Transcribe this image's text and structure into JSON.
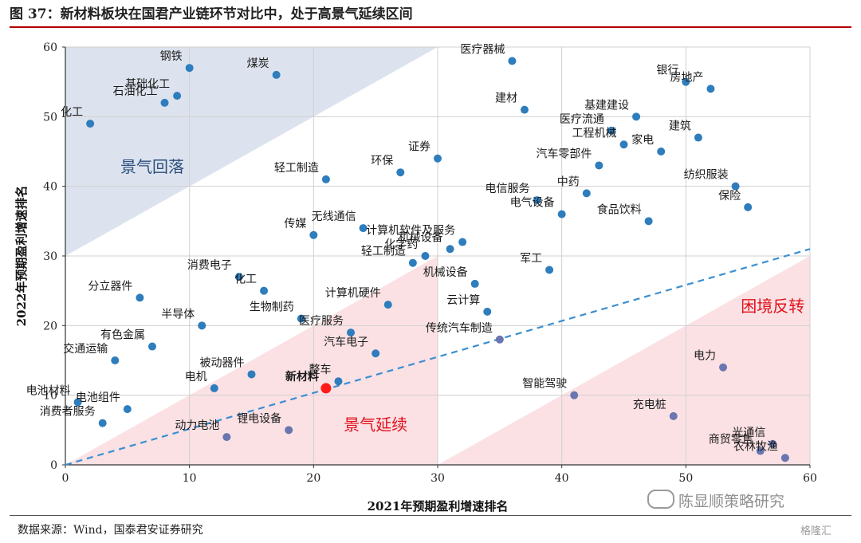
{
  "header": {
    "title": "图 37：新材料板块在国君产业链环节对比中，处于高景气延续区间"
  },
  "footer": {
    "source": "数据来源：Wind，国泰君安证券研究",
    "watermark": "陈显顺策略研究",
    "logo": "格隆汇"
  },
  "colors": {
    "point": "#2e7dbd",
    "point_lower": "#6a76b0",
    "highlight": "#ff1a1a",
    "region_decline": "#dde3ee",
    "region_continue": "#fbe1e4",
    "trend": "#3a8fd1",
    "label_decline": "#2b4f7d",
    "label_red": "#e0101a"
  },
  "chart_data": {
    "type": "scatter",
    "xlabel": "2021年预期盈利增速排名",
    "ylabel": "2022年预期盈利增速排名",
    "xlim": [
      0,
      60
    ],
    "ylim": [
      0,
      60
    ],
    "xticks": [
      0,
      10,
      20,
      30,
      40,
      50,
      60
    ],
    "yticks": [
      0,
      10,
      20,
      30,
      40,
      50,
      60
    ],
    "grid": true,
    "regions": [
      {
        "label": "景气回落",
        "label_x": 7,
        "label_y": 42,
        "color": "decline"
      },
      {
        "label": "景气延续",
        "label_x": 25,
        "label_y": 5,
        "color": "continue"
      },
      {
        "label": "困境反转",
        "label_x": 57,
        "label_y": 22,
        "color": "reversal"
      }
    ],
    "trendline": {
      "x": [
        0,
        60
      ],
      "y": [
        0,
        31
      ]
    },
    "points": [
      {
        "name": "化工",
        "x": 2,
        "y": 49
      },
      {
        "name": "石油化工",
        "x": 8,
        "y": 52
      },
      {
        "name": "基础化工",
        "x": 9,
        "y": 53
      },
      {
        "name": "钢铁",
        "x": 10,
        "y": 57
      },
      {
        "name": "煤炭",
        "x": 17,
        "y": 56
      },
      {
        "name": "医疗器械",
        "x": 36,
        "y": 58
      },
      {
        "name": "建材",
        "x": 37,
        "y": 51
      },
      {
        "name": "银行",
        "x": 50,
        "y": 55
      },
      {
        "name": "房地产",
        "x": 52,
        "y": 54
      },
      {
        "name": "基建建设",
        "x": 46,
        "y": 50
      },
      {
        "name": "医疗流通",
        "x": 44,
        "y": 48
      },
      {
        "name": "工程机械",
        "x": 45,
        "y": 46
      },
      {
        "name": "家电",
        "x": 48,
        "y": 45
      },
      {
        "name": "建筑",
        "x": 51,
        "y": 47
      },
      {
        "name": "汽车零部件",
        "x": 43,
        "y": 43
      },
      {
        "name": "中药",
        "x": 42,
        "y": 39
      },
      {
        "name": "纺织服装",
        "x": 54,
        "y": 40
      },
      {
        "name": "保险",
        "x": 55,
        "y": 37
      },
      {
        "name": "证券",
        "x": 30,
        "y": 44
      },
      {
        "name": "环保",
        "x": 27,
        "y": 42
      },
      {
        "name": "轻工制造",
        "x": 21,
        "y": 41
      },
      {
        "name": "电信服务",
        "x": 38,
        "y": 38
      },
      {
        "name": "电气设备",
        "x": 40,
        "y": 36
      },
      {
        "name": "食品饮料",
        "x": 47,
        "y": 35
      },
      {
        "name": "计算机软件及服务",
        "x": 32,
        "y": 32
      },
      {
        "name": "机械设备",
        "x": 31,
        "y": 31
      },
      {
        "name": "化学药",
        "x": 29,
        "y": 30
      },
      {
        "name": "轻工制造",
        "x": 28,
        "y": 29
      },
      {
        "name": "无线通信",
        "x": 24,
        "y": 34
      },
      {
        "name": "传媒",
        "x": 20,
        "y": 33
      },
      {
        "name": "机械设备",
        "x": 33,
        "y": 26
      },
      {
        "name": "军工",
        "x": 39,
        "y": 28
      },
      {
        "name": "云计算",
        "x": 34,
        "y": 22
      },
      {
        "name": "传统汽车制造",
        "x": 35,
        "y": 18
      },
      {
        "name": "消费电子",
        "x": 14,
        "y": 27
      },
      {
        "name": "化工",
        "x": 16,
        "y": 25
      },
      {
        "name": "生物制药",
        "x": 19,
        "y": 21
      },
      {
        "name": "计算机硬件",
        "x": 26,
        "y": 23
      },
      {
        "name": "医疗服务",
        "x": 23,
        "y": 19
      },
      {
        "name": "汽车电子",
        "x": 25,
        "y": 16
      },
      {
        "name": "分立器件",
        "x": 6,
        "y": 24
      },
      {
        "name": "半导体",
        "x": 11,
        "y": 20
      },
      {
        "name": "有色金属",
        "x": 7,
        "y": 17
      },
      {
        "name": "交通运输",
        "x": 4,
        "y": 15
      },
      {
        "name": "被动器件",
        "x": 15,
        "y": 13
      },
      {
        "name": "电机",
        "x": 12,
        "y": 11
      },
      {
        "name": "整车",
        "x": 22,
        "y": 12
      },
      {
        "name": "新材料",
        "x": 21,
        "y": 11,
        "highlight": true
      },
      {
        "name": "电池材料",
        "x": 1,
        "y": 9
      },
      {
        "name": "电池组件",
        "x": 5,
        "y": 8
      },
      {
        "name": "消费者服务",
        "x": 3,
        "y": 6
      },
      {
        "name": "动力电池",
        "x": 13,
        "y": 4
      },
      {
        "name": "锂电设备",
        "x": 18,
        "y": 5
      },
      {
        "name": "智能驾驶",
        "x": 41,
        "y": 10
      },
      {
        "name": "电力",
        "x": 53,
        "y": 14
      },
      {
        "name": "充电桩",
        "x": 49,
        "y": 7
      },
      {
        "name": "光通信",
        "x": 57,
        "y": 3
      },
      {
        "name": "商贸零售",
        "x": 56,
        "y": 2
      },
      {
        "name": "农林牧渔",
        "x": 58,
        "y": 1
      }
    ]
  }
}
